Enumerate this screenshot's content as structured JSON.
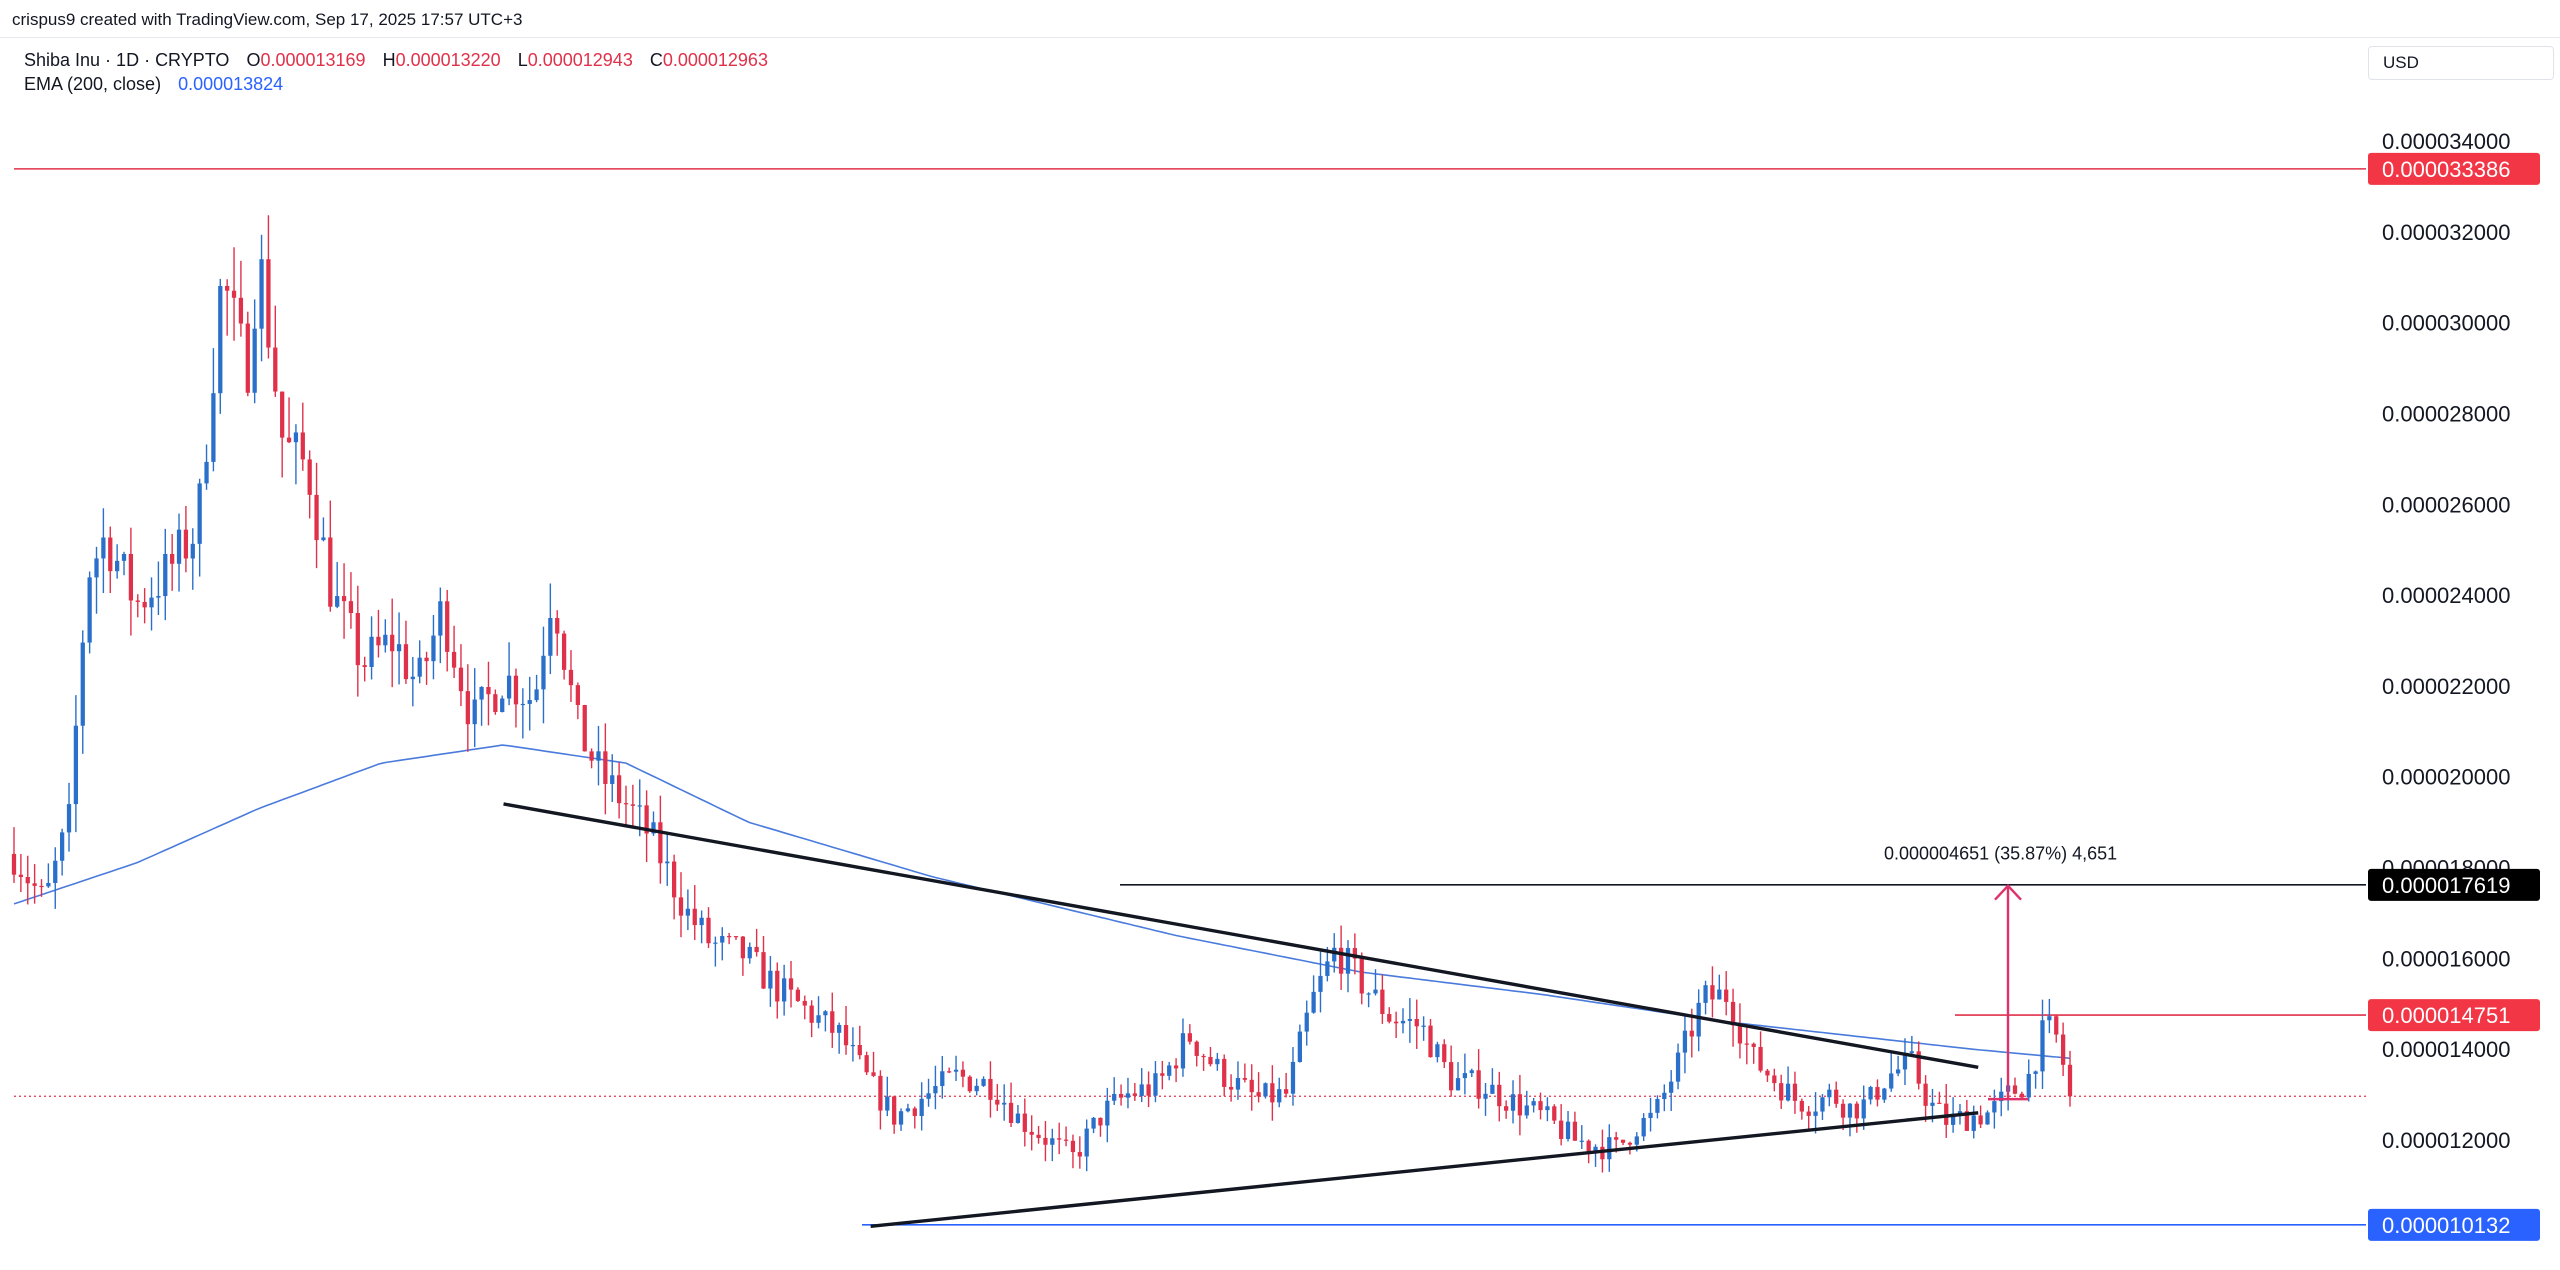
{
  "header": {
    "credit": "crispus9 created with TradingView.com, Sep 17, 2025 17:57 UTC+3",
    "currency": "USD"
  },
  "legend": {
    "symbol": "Shiba Inu · 1D · CRYPTO",
    "open_label": "O",
    "open": "0.000013169",
    "high_label": "H",
    "high": "0.000013220",
    "low_label": "L",
    "low": "0.000012943",
    "close_label": "C",
    "close": "0.000012963",
    "ema_label": "EMA (200, close)",
    "ema_value": "0.000013824"
  },
  "chart_data": {
    "type": "candlestick",
    "symbol": "Shiba Inu",
    "timeframe": "1D",
    "ylim": [
      9.4e-06,
      3.56e-05
    ],
    "y_ticks": [
      "0.000012000",
      "0.000014000",
      "0.000016000",
      "0.000018000",
      "0.000020000",
      "0.000022000",
      "0.000024000",
      "0.000026000",
      "0.000028000",
      "0.000030000",
      "0.000032000",
      "0.000034000"
    ],
    "colors": {
      "up": "#2a6fc9",
      "down": "#e0314a",
      "ema": "#4a7bdc"
    },
    "candle_count": 300,
    "price_path": [
      [
        0,
        18.3
      ],
      [
        5,
        17.2
      ],
      [
        9,
        19.0
      ],
      [
        12,
        24.5
      ],
      [
        15,
        25.3
      ],
      [
        20,
        23.8
      ],
      [
        25,
        24.5
      ],
      [
        30,
        25.5
      ],
      [
        34,
        31.0
      ],
      [
        38,
        28.9
      ],
      [
        40,
        31.5
      ],
      [
        44,
        27.3
      ],
      [
        48,
        26.8
      ],
      [
        52,
        24.0
      ],
      [
        57,
        22.5
      ],
      [
        62,
        23.0
      ],
      [
        66,
        22.0
      ],
      [
        70,
        23.7
      ],
      [
        75,
        21.2
      ],
      [
        80,
        22.2
      ],
      [
        85,
        21.7
      ],
      [
        88,
        24.2
      ],
      [
        92,
        21.1
      ],
      [
        96,
        20.0
      ],
      [
        100,
        19.4
      ],
      [
        104,
        18.7
      ],
      [
        110,
        17.0
      ],
      [
        114,
        16.3
      ],
      [
        119,
        16.1
      ],
      [
        125,
        15.3
      ],
      [
        130,
        14.8
      ],
      [
        135,
        14.3
      ],
      [
        140,
        13.2
      ],
      [
        144,
        12.5
      ],
      [
        148,
        12.9
      ],
      [
        154,
        13.4
      ],
      [
        160,
        13.2
      ],
      [
        164,
        12.5
      ],
      [
        168,
        12.1
      ],
      [
        173,
        11.6
      ],
      [
        178,
        12.6
      ],
      [
        182,
        13.0
      ],
      [
        187,
        13.2
      ],
      [
        192,
        14.3
      ],
      [
        197,
        13.5
      ],
      [
        203,
        12.9
      ],
      [
        208,
        13.0
      ],
      [
        212,
        15.0
      ],
      [
        216,
        16.2
      ],
      [
        220,
        15.5
      ],
      [
        225,
        14.7
      ],
      [
        230,
        14.5
      ],
      [
        235,
        13.3
      ],
      [
        240,
        13.2
      ],
      [
        244,
        12.9
      ],
      [
        250,
        12.5
      ],
      [
        255,
        12.0
      ],
      [
        258,
        11.9
      ],
      [
        262,
        11.8
      ],
      [
        265,
        12.3
      ],
      [
        268,
        12.5
      ],
      [
        272,
        13.7
      ],
      [
        276,
        15.1
      ],
      [
        280,
        15.2
      ],
      [
        284,
        13.8
      ],
      [
        288,
        13.3
      ],
      [
        291,
        12.9
      ],
      [
        294,
        12.8
      ],
      [
        297,
        13.0
      ],
      [
        300,
        12.7
      ],
      [
        303,
        12.8
      ],
      [
        306,
        13.4
      ],
      [
        310,
        13.7
      ],
      [
        313,
        12.8
      ],
      [
        316,
        12.4
      ],
      [
        319,
        12.5
      ],
      [
        323,
        12.6
      ],
      [
        326,
        13.0
      ],
      [
        329,
        13.3
      ],
      [
        332,
        14.5
      ],
      [
        334,
        14.2
      ],
      [
        336,
        13.0
      ]
    ],
    "ema_path": [
      [
        0,
        17.2
      ],
      [
        20,
        18.1
      ],
      [
        40,
        19.3
      ],
      [
        60,
        20.3
      ],
      [
        80,
        20.7
      ],
      [
        100,
        20.3
      ],
      [
        120,
        19.0
      ],
      [
        150,
        17.8
      ],
      [
        190,
        16.5
      ],
      [
        220,
        15.7
      ],
      [
        250,
        15.2
      ],
      [
        280,
        14.6
      ],
      [
        300,
        14.3
      ],
      [
        320,
        14.0
      ],
      [
        336,
        13.8
      ]
    ],
    "horizontal_levels": [
      {
        "label": "0.000033386",
        "value": 3.3386e-05,
        "color": "#e0314a"
      },
      {
        "label": "0.000017619",
        "value": 1.7619e-05,
        "color": "#131722"
      },
      {
        "label": "0.000014751",
        "value": 1.4751e-05,
        "color": "#e0314a"
      },
      {
        "label": "0.000010132",
        "value": 1.0132e-05,
        "color": "#2962ff"
      }
    ],
    "current_price": 1.2963e-05,
    "trendlines": [
      {
        "name": "descending resistance",
        "from": [
          80,
          1.94e-05
        ],
        "to": [
          321,
          1.36e-05
        ]
      },
      {
        "name": "ascending support",
        "from": [
          140,
          1.01e-05
        ],
        "to": [
          321,
          1.26e-05
        ]
      }
    ],
    "measure": {
      "text": "0.000004651 (35.87%) 4,651",
      "from": 1.29e-05,
      "to": 1.76e-05
    }
  }
}
